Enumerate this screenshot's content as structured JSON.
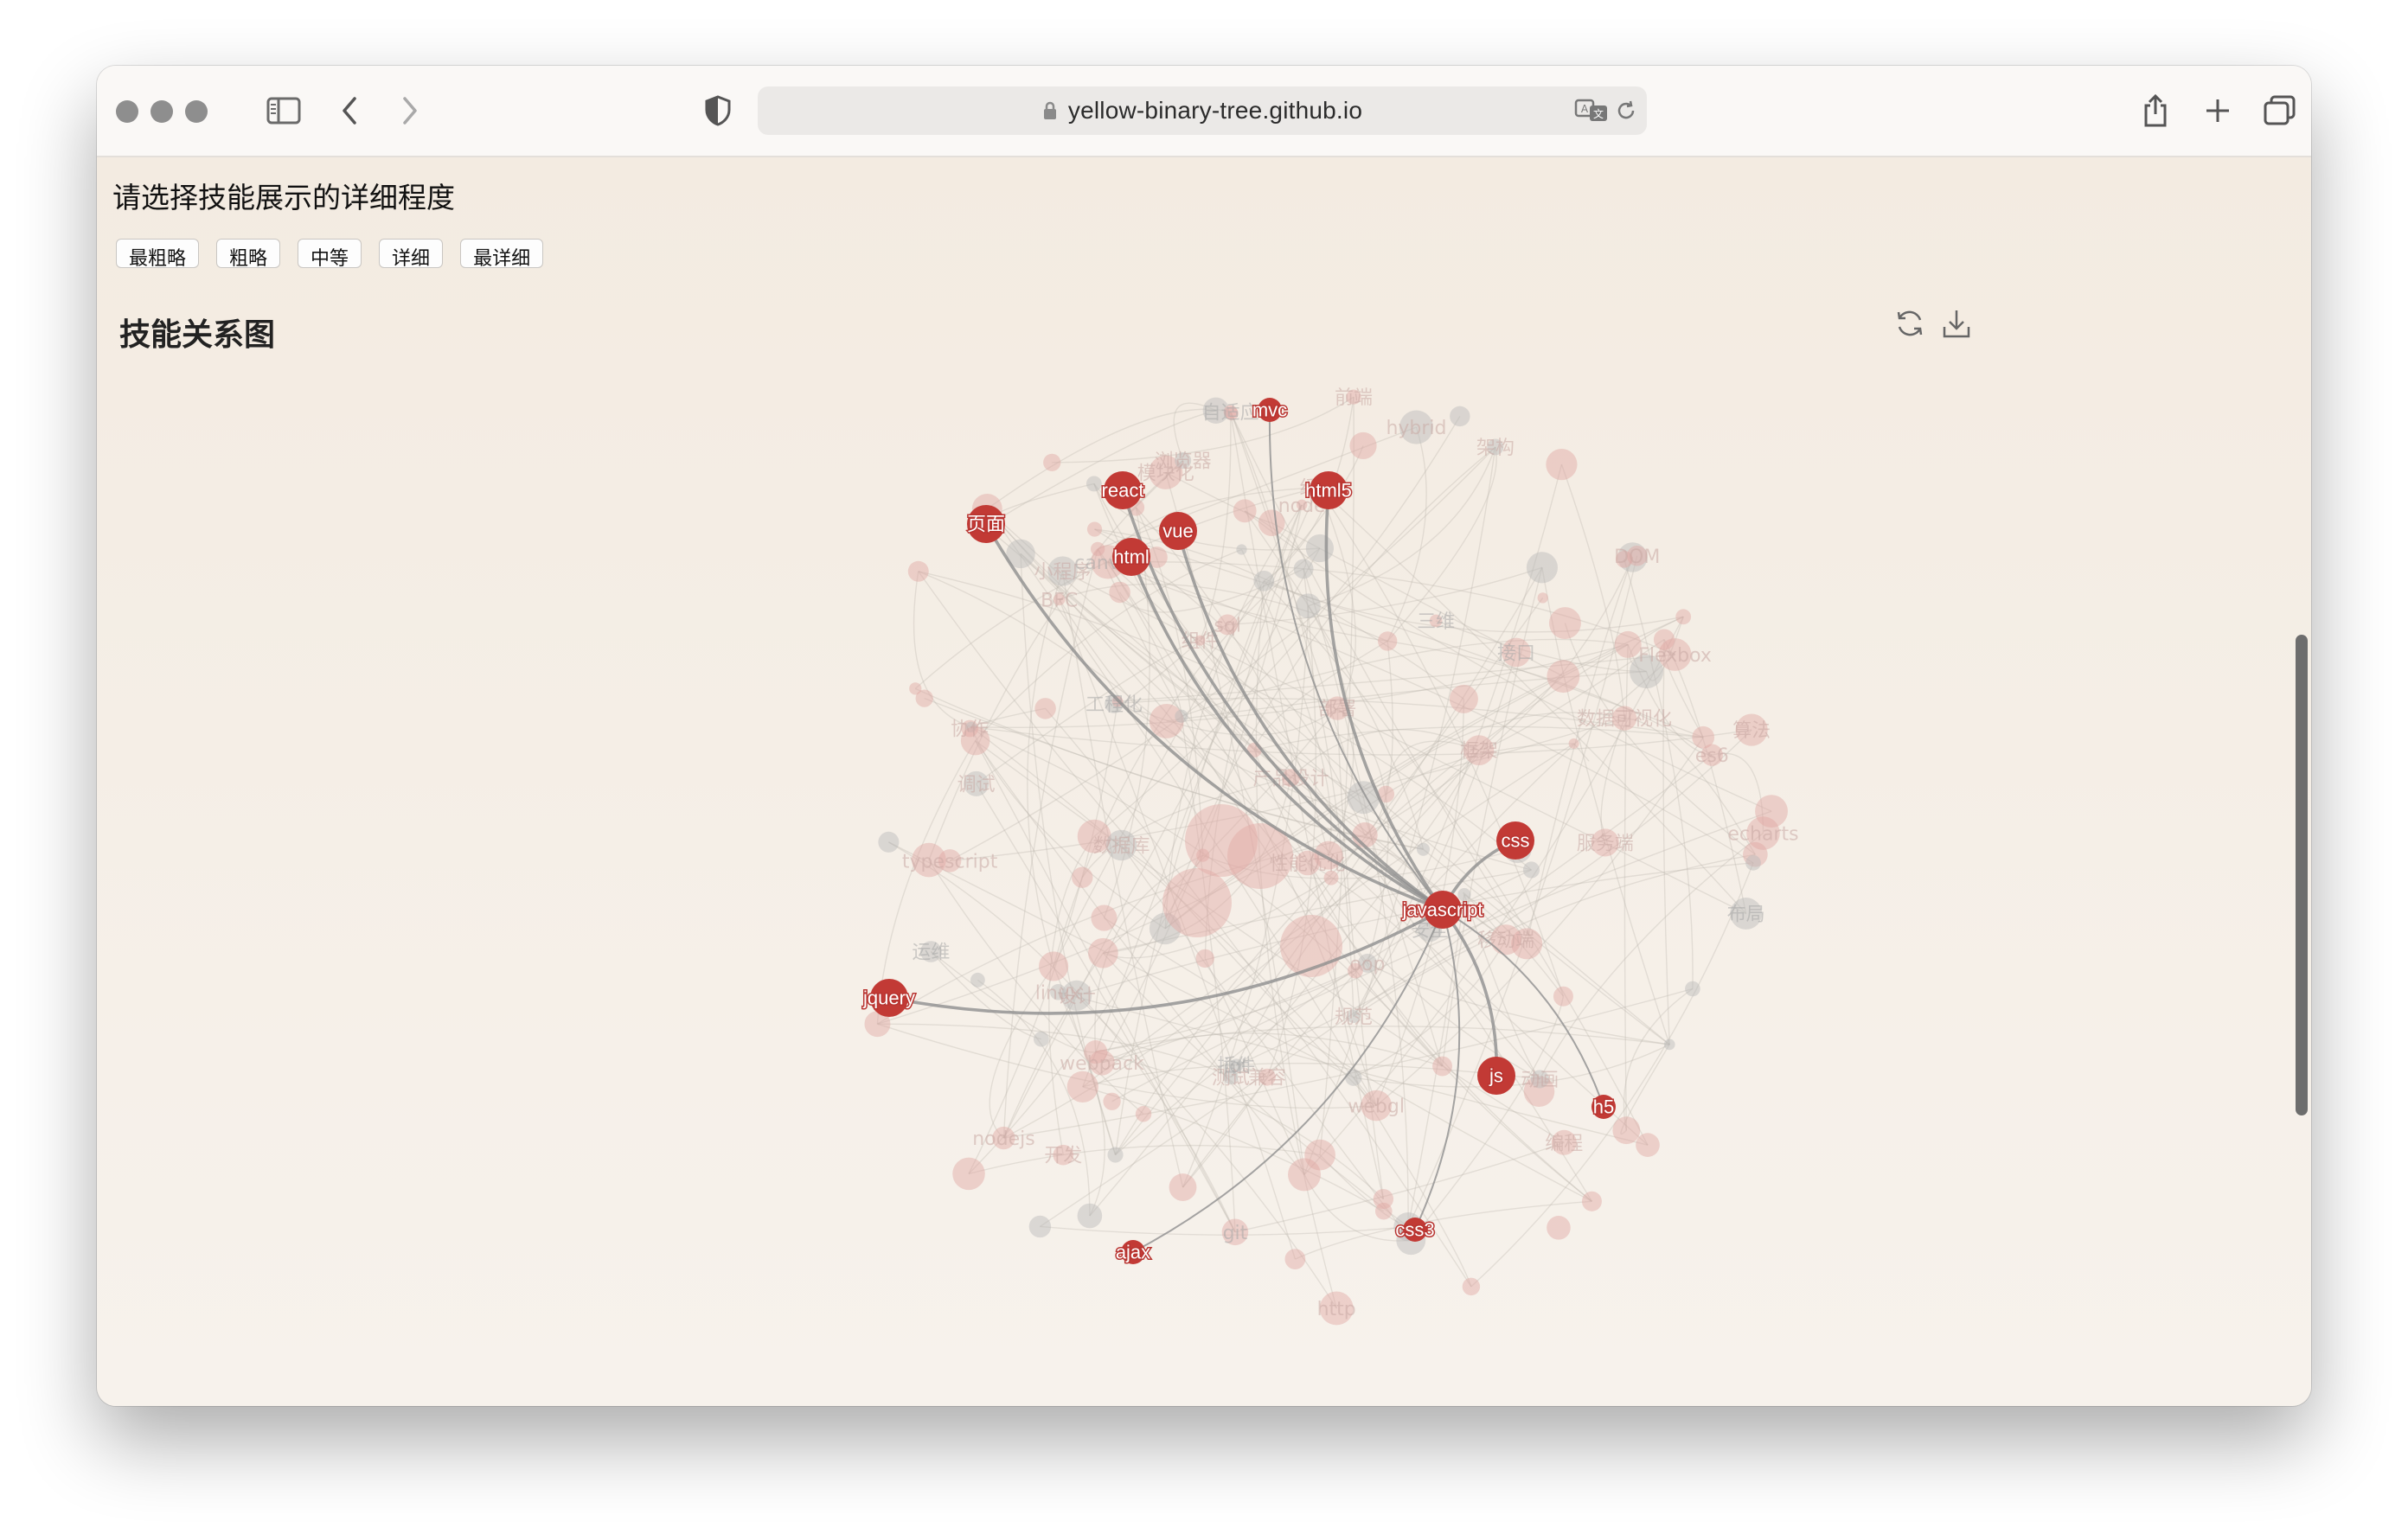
{
  "browser": {
    "url": "yellow-binary-tree.github.io",
    "icons": [
      "sidebar-icon",
      "back-icon",
      "forward-icon",
      "shield-icon",
      "lock-icon",
      "translate-icon",
      "reload-icon",
      "share-icon",
      "new-tab-icon",
      "tabs-overview-icon"
    ]
  },
  "page": {
    "prompt": "请选择技能展示的详细程度",
    "levels": [
      "最粗略",
      "粗略",
      "中等",
      "详细",
      "最详细"
    ],
    "section_title": "技能关系图",
    "tools": [
      "restore-icon",
      "download-icon"
    ]
  },
  "graph": {
    "center": "javascript",
    "highlighted_nodes": [
      {
        "id": "mvc",
        "label": "mvc",
        "size": "small"
      },
      {
        "id": "react",
        "label": "react",
        "size": "large"
      },
      {
        "id": "html5",
        "label": "html5",
        "size": "large"
      },
      {
        "id": "page",
        "label": "页面",
        "size": "large"
      },
      {
        "id": "vue",
        "label": "vue",
        "size": "large"
      },
      {
        "id": "html",
        "label": "html",
        "size": "large"
      },
      {
        "id": "css",
        "label": "css",
        "size": "large"
      },
      {
        "id": "javascript",
        "label": "javascript",
        "size": "large"
      },
      {
        "id": "jquery",
        "label": "jquery",
        "size": "large"
      },
      {
        "id": "js",
        "label": "js",
        "size": "large"
      },
      {
        "id": "h5",
        "label": "h5",
        "size": "small"
      },
      {
        "id": "css3",
        "label": "css3",
        "size": "small"
      },
      {
        "id": "ajax",
        "label": "ajax",
        "size": "small"
      }
    ],
    "faded_labels": [
      "iot",
      "node",
      "nodejs",
      "Flexbox",
      "小程序",
      "三维",
      "数据可视化",
      "协作",
      "webpack",
      "设计",
      "工程化",
      "BFC",
      "sql",
      "hybrid",
      "oop",
      "运维",
      "DOM",
      "性能优化",
      "组件",
      "动画",
      "布局",
      "兼容",
      "模块化",
      "编程",
      "echarts",
      "接口",
      "开发",
      "webgl",
      "框架",
      "前端",
      "canvas",
      "产品设计",
      "测试",
      "架构",
      "缓存",
      "安全",
      "规范",
      "服务端",
      "移动端",
      "数据库",
      "git",
      "linux",
      "http",
      "es6",
      "typescript",
      "自适应",
      "算法",
      "浏览器",
      "部署",
      "调试",
      "插件"
    ]
  }
}
